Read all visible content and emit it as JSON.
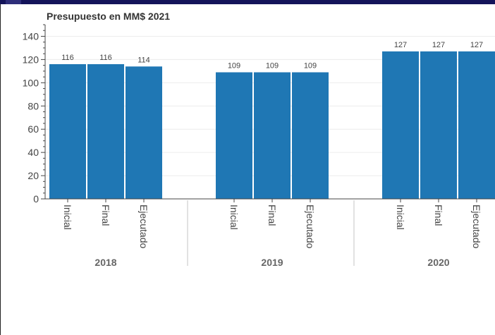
{
  "chart_data": {
    "type": "bar",
    "title": "Presupuesto en MM$ 2021",
    "xlabel": "",
    "ylabel": "",
    "ylim": [
      0,
      150
    ],
    "yticks": [
      0,
      20,
      40,
      60,
      80,
      100,
      120,
      140
    ],
    "grid": true,
    "color": "#1f77b4",
    "groups": [
      {
        "name": "2018",
        "categories": [
          "Inicial",
          "Final",
          "Ejecutado"
        ],
        "values": [
          116,
          116,
          114
        ]
      },
      {
        "name": "2019",
        "categories": [
          "Inicial",
          "Final",
          "Ejecutado"
        ],
        "values": [
          109,
          109,
          109
        ]
      },
      {
        "name": "2020",
        "categories": [
          "Inicial",
          "Final",
          "Ejecutado"
        ],
        "values": [
          127,
          127,
          127
        ]
      }
    ]
  }
}
